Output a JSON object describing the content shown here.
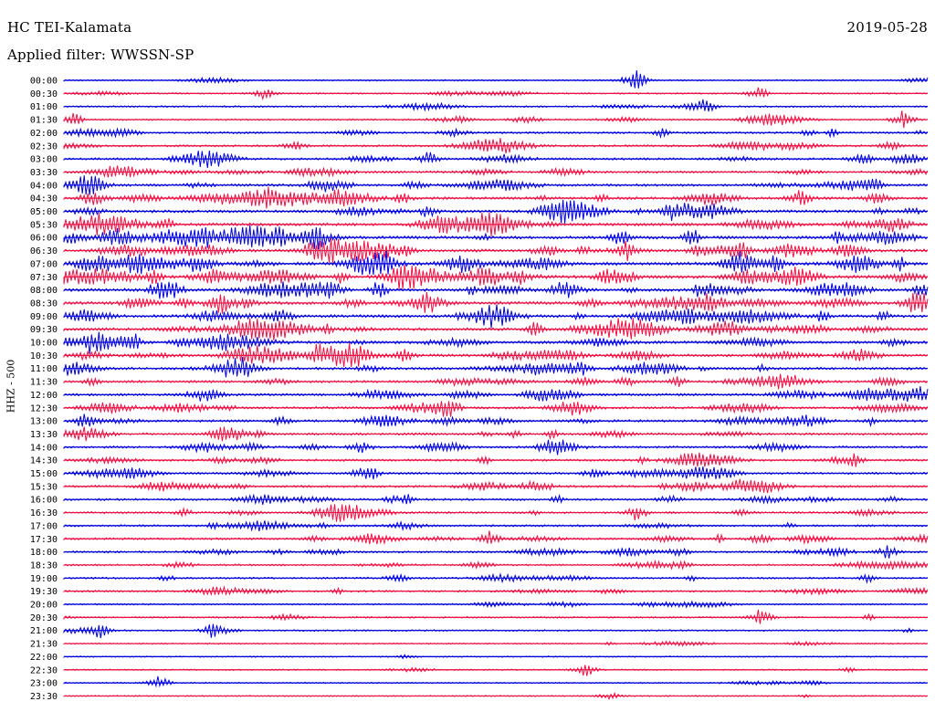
{
  "header": {
    "station": "HC TEI-Kalamata",
    "date": "2019-05-28",
    "filter": "Applied filter: WWSSN-SP"
  },
  "chart_data": {
    "type": "helicorder",
    "ylabel": "HHZ - 500",
    "trace_colors": [
      "#0000dd",
      "#ee1144"
    ],
    "trace_color_names": [
      "blue",
      "red"
    ],
    "row_labels": [
      "00:00",
      "00:30",
      "01:00",
      "01:30",
      "02:00",
      "02:30",
      "03:00",
      "03:30",
      "04:00",
      "04:30",
      "05:00",
      "05:30",
      "06:00",
      "06:30",
      "07:00",
      "07:30",
      "08:00",
      "08:30",
      "09:00",
      "09:30",
      "10:00",
      "10:30",
      "11:00",
      "11:30",
      "12:00",
      "12:30",
      "13:00",
      "13:30",
      "14:00",
      "14:30",
      "15:00",
      "15:30",
      "16:00",
      "16:30",
      "17:00",
      "17:30",
      "18:00",
      "18:30",
      "19:00",
      "19:30",
      "20:00",
      "20:30",
      "21:00",
      "21:30",
      "22:00",
      "22:30",
      "23:00",
      "23:30"
    ],
    "activity_level": [
      0.15,
      0.15,
      0.2,
      0.25,
      0.35,
      0.35,
      0.45,
      0.45,
      0.55,
      0.65,
      0.7,
      0.75,
      0.8,
      0.85,
      0.85,
      0.85,
      0.8,
      0.8,
      0.75,
      0.75,
      0.7,
      0.65,
      0.6,
      0.55,
      0.55,
      0.5,
      0.5,
      0.45,
      0.45,
      0.45,
      0.45,
      0.45,
      0.4,
      0.4,
      0.4,
      0.4,
      0.35,
      0.3,
      0.3,
      0.3,
      0.2,
      0.2,
      0.15,
      0.15,
      0.05,
      0.08,
      0.08,
      0.05
    ],
    "events": [
      {
        "row": 0,
        "x": 0.66,
        "amp": 1.0
      },
      {
        "row": 1,
        "x": 0.23,
        "amp": 0.6
      },
      {
        "row": 1,
        "x": 0.8,
        "amp": 0.8
      },
      {
        "row": 2,
        "x": 0.74,
        "amp": 1.0
      },
      {
        "row": 3,
        "x": 0.01,
        "amp": 0.8
      },
      {
        "row": 3,
        "x": 0.97,
        "amp": 1.0
      },
      {
        "row": 6,
        "x": 0.92,
        "amp": 0.9
      },
      {
        "row": 6,
        "x": 0.42,
        "amp": 0.8
      },
      {
        "row": 9,
        "x": 0.85,
        "amp": 1.0
      },
      {
        "row": 13,
        "x": 0.65,
        "amp": 1.0
      },
      {
        "row": 13,
        "x": 0.78,
        "amp": 1.0
      },
      {
        "row": 14,
        "x": 0.82,
        "amp": 1.0
      },
      {
        "row": 14,
        "x": 0.37,
        "amp": 0.9
      },
      {
        "row": 20,
        "x": 0.03,
        "amp": 0.9
      },
      {
        "row": 21,
        "x": 0.39,
        "amp": 0.9
      },
      {
        "row": 26,
        "x": 0.02,
        "amp": 0.9
      },
      {
        "row": 30,
        "x": 0.35,
        "amp": 1.0
      },
      {
        "row": 33,
        "x": 0.66,
        "amp": 0.9
      },
      {
        "row": 35,
        "x": 0.49,
        "amp": 0.9
      },
      {
        "row": 36,
        "x": 0.95,
        "amp": 0.8
      },
      {
        "row": 41,
        "x": 0.8,
        "amp": 1.0
      },
      {
        "row": 42,
        "x": 0.04,
        "amp": 1.0
      },
      {
        "row": 42,
        "x": 0.17,
        "amp": 0.8
      },
      {
        "row": 45,
        "x": 0.6,
        "amp": 1.0
      },
      {
        "row": 46,
        "x": 0.11,
        "amp": 0.9
      },
      {
        "row": 47,
        "x": 0.63,
        "amp": 0.5
      }
    ]
  }
}
